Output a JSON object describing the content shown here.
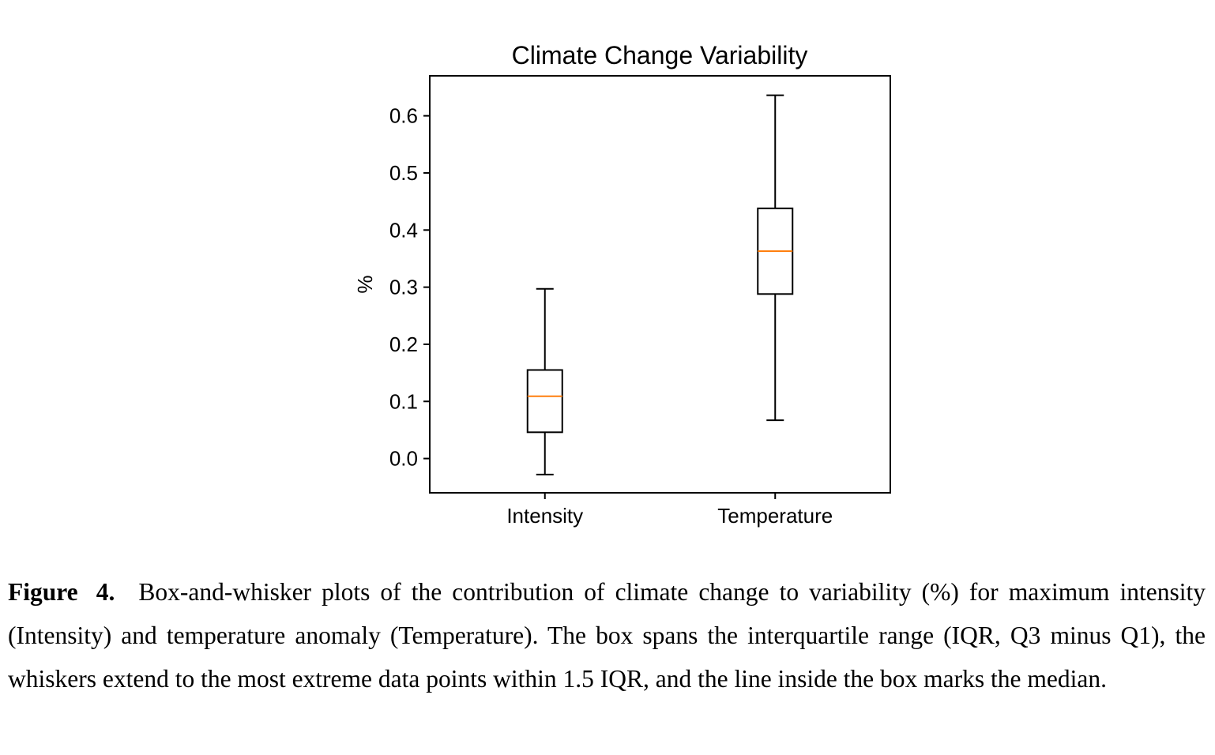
{
  "chart_data": {
    "type": "box",
    "title": "Climate Change Variability",
    "xlabel": "",
    "ylabel": "%",
    "categories": [
      "Intensity",
      "Temperature"
    ],
    "boxes": [
      {
        "category": "Intensity",
        "whisker_low": -0.028,
        "q1": 0.046,
        "median": 0.109,
        "q3": 0.155,
        "whisker_high": 0.297
      },
      {
        "category": "Temperature",
        "whisker_low": 0.067,
        "q1": 0.288,
        "median": 0.363,
        "q3": 0.438,
        "whisker_high": 0.636
      }
    ],
    "ylim": [
      -0.06,
      0.67
    ],
    "yticks": [
      0.0,
      0.1,
      0.2,
      0.3,
      0.4,
      0.5,
      0.6
    ],
    "ytick_labels": [
      "0.0",
      "0.1",
      "0.2",
      "0.3",
      "0.4",
      "0.5",
      "0.6"
    ],
    "grid": false,
    "colors": {
      "box": "#000000",
      "median": "#ff7f0e"
    }
  },
  "caption": {
    "label": "Figure 4.",
    "text": "Box-and-whisker plots of the contribution of climate change to variability (%) for maximum intensity (Intensity) and temperature anomaly (Temperature). The box spans the interquartile range (IQR, Q3 minus Q1), the whiskers extend to the most extreme data points within 1.5 IQR, and the line inside the box marks the median."
  }
}
